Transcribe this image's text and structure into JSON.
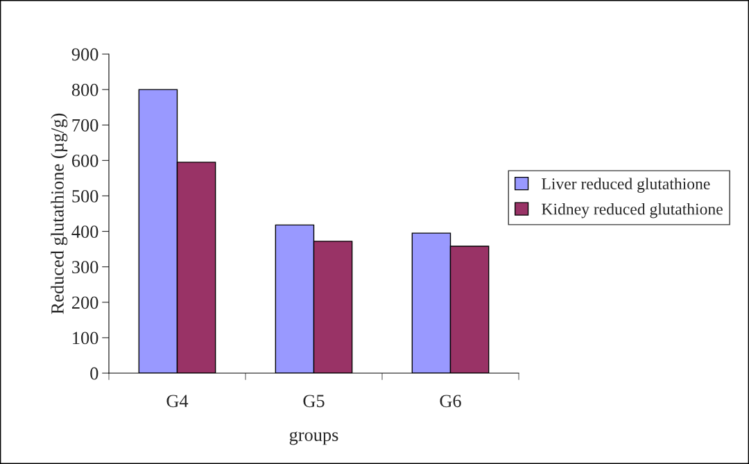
{
  "chart_data": {
    "type": "bar",
    "xlabel": "groups",
    "ylabel": "Reduced glutathione (µg/g)",
    "categories": [
      "G4",
      "G5",
      "G6"
    ],
    "series": [
      {
        "name": "Liver reduced glutathione",
        "color": "#9999ff",
        "values": [
          800,
          418,
          395
        ]
      },
      {
        "name": "Kidney reduced glutathione",
        "color": "#993366",
        "values": [
          595,
          372,
          358
        ]
      }
    ],
    "ylim": [
      0,
      900
    ],
    "yticks": [
      0,
      100,
      200,
      300,
      400,
      500,
      600,
      700,
      800,
      900
    ],
    "grid": false,
    "legend": "right"
  }
}
